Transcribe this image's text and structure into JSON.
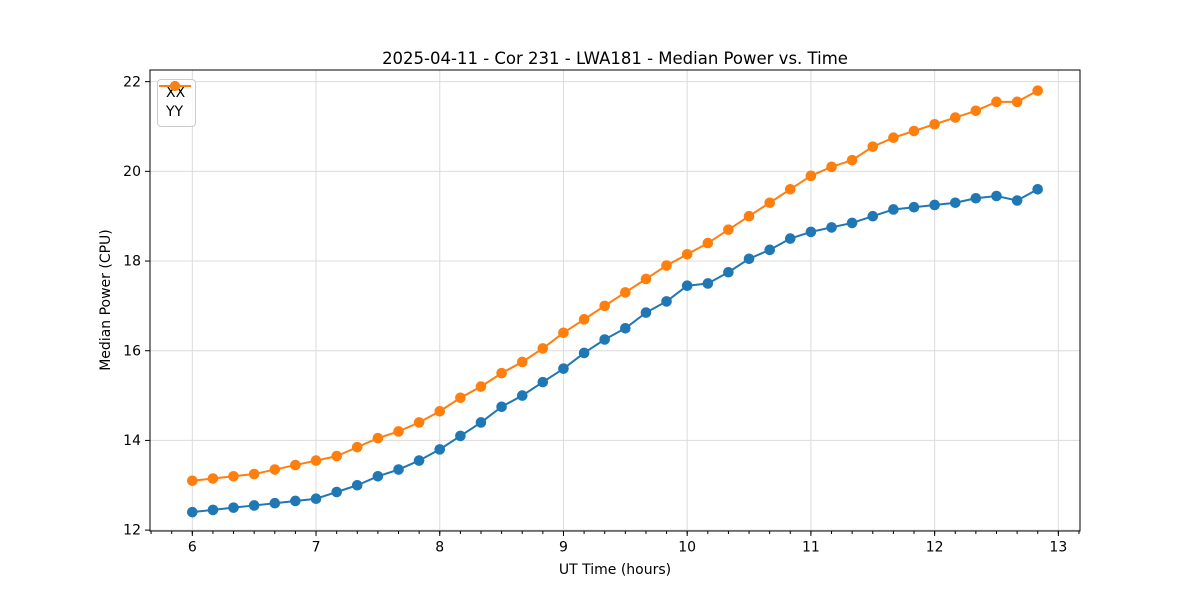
{
  "figure": {
    "title": "2025-04-11 - Cor 231 - LWA181 - Median Power vs. Time",
    "xlabel": "UT Time (hours)",
    "ylabel": "Median Power (CPU)"
  },
  "chart_data": {
    "type": "line",
    "title": "2025-04-11 - Cor 231 - LWA181 - Median Power vs. Time",
    "xlabel": "UT Time (hours)",
    "ylabel": "Median Power (CPU)",
    "grid": true,
    "grid_color": "#dcdcdc",
    "spine_color": "#000000",
    "legend_position": "upper left",
    "xlim": [
      5.658,
      13.175
    ],
    "ylim": [
      11.98,
      22.26
    ],
    "x_ticks": [
      6,
      7,
      8,
      9,
      10,
      11,
      12,
      13
    ],
    "y_ticks": [
      12,
      14,
      16,
      18,
      20,
      22
    ],
    "x_minor_step": 0.1666667,
    "x": [
      6.0,
      6.167,
      6.333,
      6.5,
      6.667,
      6.833,
      7.0,
      7.167,
      7.333,
      7.5,
      7.667,
      7.833,
      8.0,
      8.167,
      8.333,
      8.5,
      8.667,
      8.833,
      9.0,
      9.167,
      9.333,
      9.5,
      9.667,
      9.833,
      10.0,
      10.167,
      10.333,
      10.5,
      10.667,
      10.833,
      11.0,
      11.167,
      11.333,
      11.5,
      11.667,
      11.833,
      12.0,
      12.167,
      12.333,
      12.5,
      12.667,
      12.833
    ],
    "series": [
      {
        "name": "XX",
        "color": "#1f77b4",
        "values": [
          12.4,
          12.45,
          12.5,
          12.55,
          12.6,
          12.65,
          12.7,
          12.85,
          13.0,
          13.2,
          13.35,
          13.55,
          13.8,
          14.1,
          14.4,
          14.75,
          15.0,
          15.3,
          15.6,
          15.95,
          16.25,
          16.5,
          16.85,
          17.1,
          17.45,
          17.5,
          17.75,
          18.05,
          18.25,
          18.5,
          18.65,
          18.75,
          18.85,
          19.0,
          19.15,
          19.2,
          19.25,
          19.3,
          19.4,
          19.45,
          19.35,
          19.6
        ]
      },
      {
        "name": "YY",
        "color": "#ff7f0e",
        "values": [
          13.1,
          13.15,
          13.2,
          13.25,
          13.35,
          13.45,
          13.55,
          13.65,
          13.85,
          14.05,
          14.2,
          14.4,
          14.65,
          14.95,
          15.2,
          15.5,
          15.75,
          16.05,
          16.4,
          16.7,
          17.0,
          17.3,
          17.6,
          17.9,
          18.15,
          18.4,
          18.7,
          19.0,
          19.3,
          19.6,
          19.9,
          20.1,
          20.25,
          20.55,
          20.75,
          20.9,
          21.05,
          21.2,
          21.35,
          21.55,
          21.55,
          21.8
        ]
      }
    ]
  }
}
